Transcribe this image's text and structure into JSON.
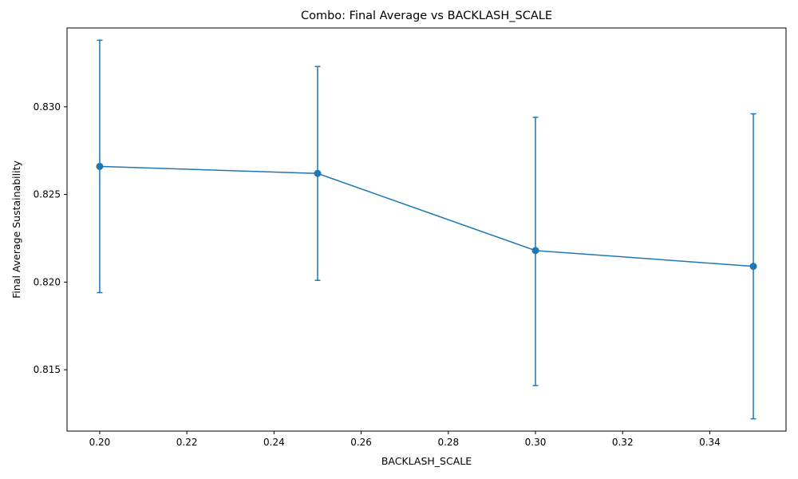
{
  "chart_data": {
    "type": "line",
    "title": "Combo: Final Average vs BACKLASH_SCALE",
    "xlabel": "BACKLASH_SCALE",
    "ylabel": "Final Average Sustainability",
    "xlim": [
      0.1925,
      0.3575
    ],
    "ylim": [
      0.8115,
      0.8345
    ],
    "x_ticks": [
      "0.20",
      "0.22",
      "0.24",
      "0.26",
      "0.28",
      "0.30",
      "0.32",
      "0.34"
    ],
    "x_tick_values": [
      0.2,
      0.22,
      0.24,
      0.26,
      0.28,
      0.3,
      0.32,
      0.34
    ],
    "y_ticks": [
      "0.815",
      "0.820",
      "0.825",
      "0.830"
    ],
    "y_tick_values": [
      0.815,
      0.82,
      0.825,
      0.83
    ],
    "grid": false,
    "series": [
      {
        "color": "#1f77b4",
        "x": [
          0.2,
          0.25,
          0.3,
          0.35
        ],
        "y": [
          0.8266,
          0.8262,
          0.8218,
          0.8209
        ],
        "err_low": [
          0.8194,
          0.8201,
          0.8141,
          0.8122
        ],
        "err_high": [
          0.8338,
          0.8323,
          0.8294,
          0.8296
        ]
      }
    ]
  }
}
